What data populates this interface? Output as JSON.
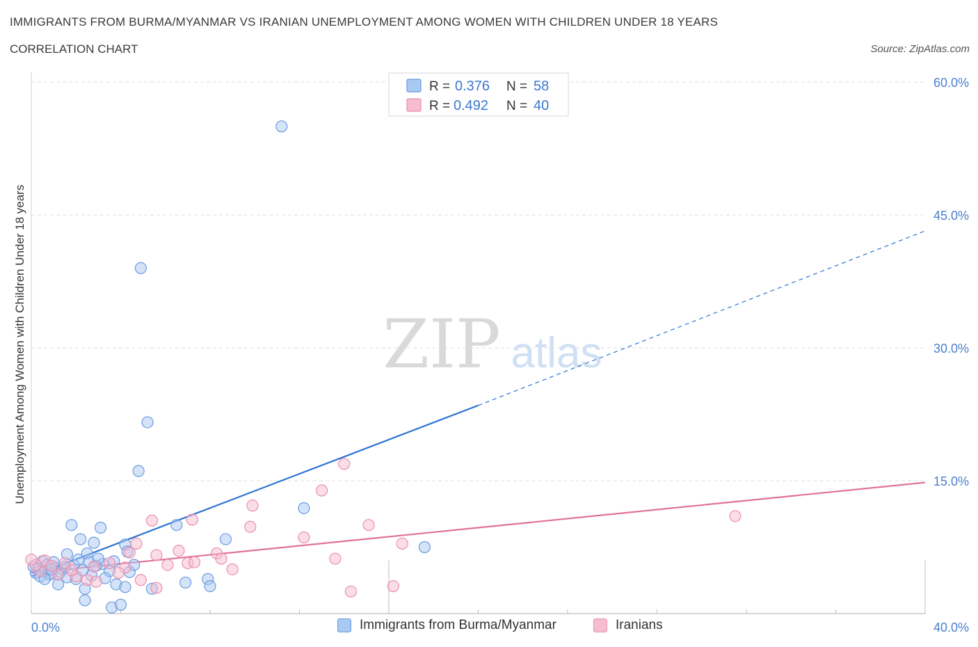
{
  "header": {
    "title": "IMMIGRANTS FROM BURMA/MYANMAR VS IRANIAN UNEMPLOYMENT AMONG WOMEN WITH CHILDREN UNDER 18 YEARS",
    "subtitle": "CORRELATION CHART",
    "source": "Source: ZipAtlas.com"
  },
  "watermark": {
    "zip": "ZIP",
    "atlas": "atlas"
  },
  "colors": {
    "blue_fill": "#a9c8f2",
    "blue_stroke": "#6a9be0",
    "blue_line": "#2a72d2",
    "pink_fill": "#f6bcd0",
    "pink_stroke": "#ea8fae",
    "pink_line": "#e0709a",
    "tick_label": "#4a7fce",
    "grid": "#dcdcdc"
  },
  "chart_data": {
    "type": "scatter",
    "title": "IMMIGRANTS FROM BURMA/MYANMAR VS IRANIAN UNEMPLOYMENT AMONG WOMEN WITH CHILDREN UNDER 18 YEARS",
    "xlabel": "",
    "ylabel": "Unemployment Among Women with Children Under 18 years",
    "xlim": [
      0,
      40
    ],
    "ylim": [
      0,
      60
    ],
    "x_tick_labels": [
      "0.0%",
      "40.0%"
    ],
    "y_ticks": [
      15,
      30,
      45,
      60
    ],
    "y_tick_labels": [
      "15.0%",
      "30.0%",
      "45.0%",
      "60.0%"
    ],
    "grid": true,
    "legend_position": "top-center",
    "series": [
      {
        "name": "Immigrants from Burma/Myanmar",
        "color": "#a9c8f2",
        "R": "0.376",
        "N": "58",
        "r_label": "R =",
        "n_label": "N =",
        "trend": {
          "x": [
            0,
            20
          ],
          "y": [
            4.2,
            23.5
          ],
          "dashed_to": [
            40,
            43.2
          ]
        },
        "points": [
          [
            11.2,
            55.0
          ],
          [
            4.9,
            39.0
          ],
          [
            5.2,
            21.6
          ],
          [
            4.8,
            16.1
          ],
          [
            12.2,
            11.9
          ],
          [
            6.5,
            10.0
          ],
          [
            8.7,
            8.4
          ],
          [
            17.6,
            7.5
          ],
          [
            1.8,
            10.0
          ],
          [
            3.1,
            9.7
          ],
          [
            2.2,
            8.4
          ],
          [
            2.8,
            8.0
          ],
          [
            4.2,
            7.8
          ],
          [
            4.3,
            7.0
          ],
          [
            2.5,
            6.8
          ],
          [
            1.6,
            6.7
          ],
          [
            1.9,
            5.5
          ],
          [
            3.2,
            5.6
          ],
          [
            2.6,
            5.8
          ],
          [
            3.5,
            4.8
          ],
          [
            0.5,
            5.9
          ],
          [
            0.3,
            5.0
          ],
          [
            0.6,
            4.8
          ],
          [
            0.9,
            4.5
          ],
          [
            1.1,
            5.2
          ],
          [
            1.4,
            5.0
          ],
          [
            0.7,
            5.5
          ],
          [
            1.0,
            5.8
          ],
          [
            0.2,
            4.6
          ],
          [
            0.4,
            4.2
          ],
          [
            0.8,
            4.4
          ],
          [
            1.3,
            4.7
          ],
          [
            1.6,
            4.1
          ],
          [
            2.0,
            3.9
          ],
          [
            2.3,
            4.9
          ],
          [
            2.9,
            5.4
          ],
          [
            3.3,
            4.0
          ],
          [
            3.8,
            3.3
          ],
          [
            4.4,
            4.7
          ],
          [
            2.4,
            2.8
          ],
          [
            1.2,
            3.3
          ],
          [
            2.4,
            1.5
          ],
          [
            3.6,
            0.7
          ],
          [
            4.0,
            1.0
          ],
          [
            5.4,
            2.8
          ],
          [
            6.9,
            3.5
          ],
          [
            7.9,
            3.9
          ],
          [
            8.0,
            3.1
          ],
          [
            4.2,
            3.0
          ],
          [
            0.1,
            5.3
          ],
          [
            3.0,
            6.2
          ],
          [
            1.5,
            5.3
          ],
          [
            0.6,
            3.9
          ],
          [
            3.7,
            5.9
          ],
          [
            2.1,
            6.1
          ],
          [
            4.6,
            5.5
          ],
          [
            0.9,
            5.0
          ],
          [
            2.7,
            4.3
          ]
        ]
      },
      {
        "name": "Iranians",
        "color": "#f6bcd0",
        "R": "0.492",
        "N": "40",
        "r_label": "R =",
        "n_label": "N =",
        "trend": {
          "x": [
            0,
            40
          ],
          "y": [
            4.6,
            14.8
          ]
        },
        "points": [
          [
            14.0,
            16.9
          ],
          [
            13.0,
            13.9
          ],
          [
            9.9,
            12.2
          ],
          [
            31.5,
            11.0
          ],
          [
            5.4,
            10.5
          ],
          [
            7.2,
            10.6
          ],
          [
            9.8,
            9.8
          ],
          [
            15.1,
            10.0
          ],
          [
            12.2,
            8.6
          ],
          [
            16.6,
            7.9
          ],
          [
            4.7,
            7.9
          ],
          [
            6.6,
            7.1
          ],
          [
            8.3,
            6.8
          ],
          [
            8.5,
            6.2
          ],
          [
            13.6,
            6.2
          ],
          [
            4.4,
            6.9
          ],
          [
            5.6,
            6.6
          ],
          [
            7.0,
            5.7
          ],
          [
            7.3,
            5.8
          ],
          [
            6.1,
            5.5
          ],
          [
            3.5,
            5.7
          ],
          [
            4.2,
            5.2
          ],
          [
            2.8,
            5.3
          ],
          [
            1.5,
            5.7
          ],
          [
            0.6,
            6.0
          ],
          [
            0.9,
            5.4
          ],
          [
            1.2,
            4.4
          ],
          [
            2.0,
            4.2
          ],
          [
            2.5,
            3.8
          ],
          [
            2.9,
            3.6
          ],
          [
            3.9,
            4.6
          ],
          [
            4.9,
            3.8
          ],
          [
            5.6,
            2.9
          ],
          [
            0.4,
            4.8
          ],
          [
            0.2,
            5.5
          ],
          [
            1.8,
            4.9
          ],
          [
            9.0,
            5.0
          ],
          [
            14.3,
            2.5
          ],
          [
            16.2,
            3.1
          ],
          [
            0.0,
            6.1
          ]
        ]
      }
    ]
  }
}
